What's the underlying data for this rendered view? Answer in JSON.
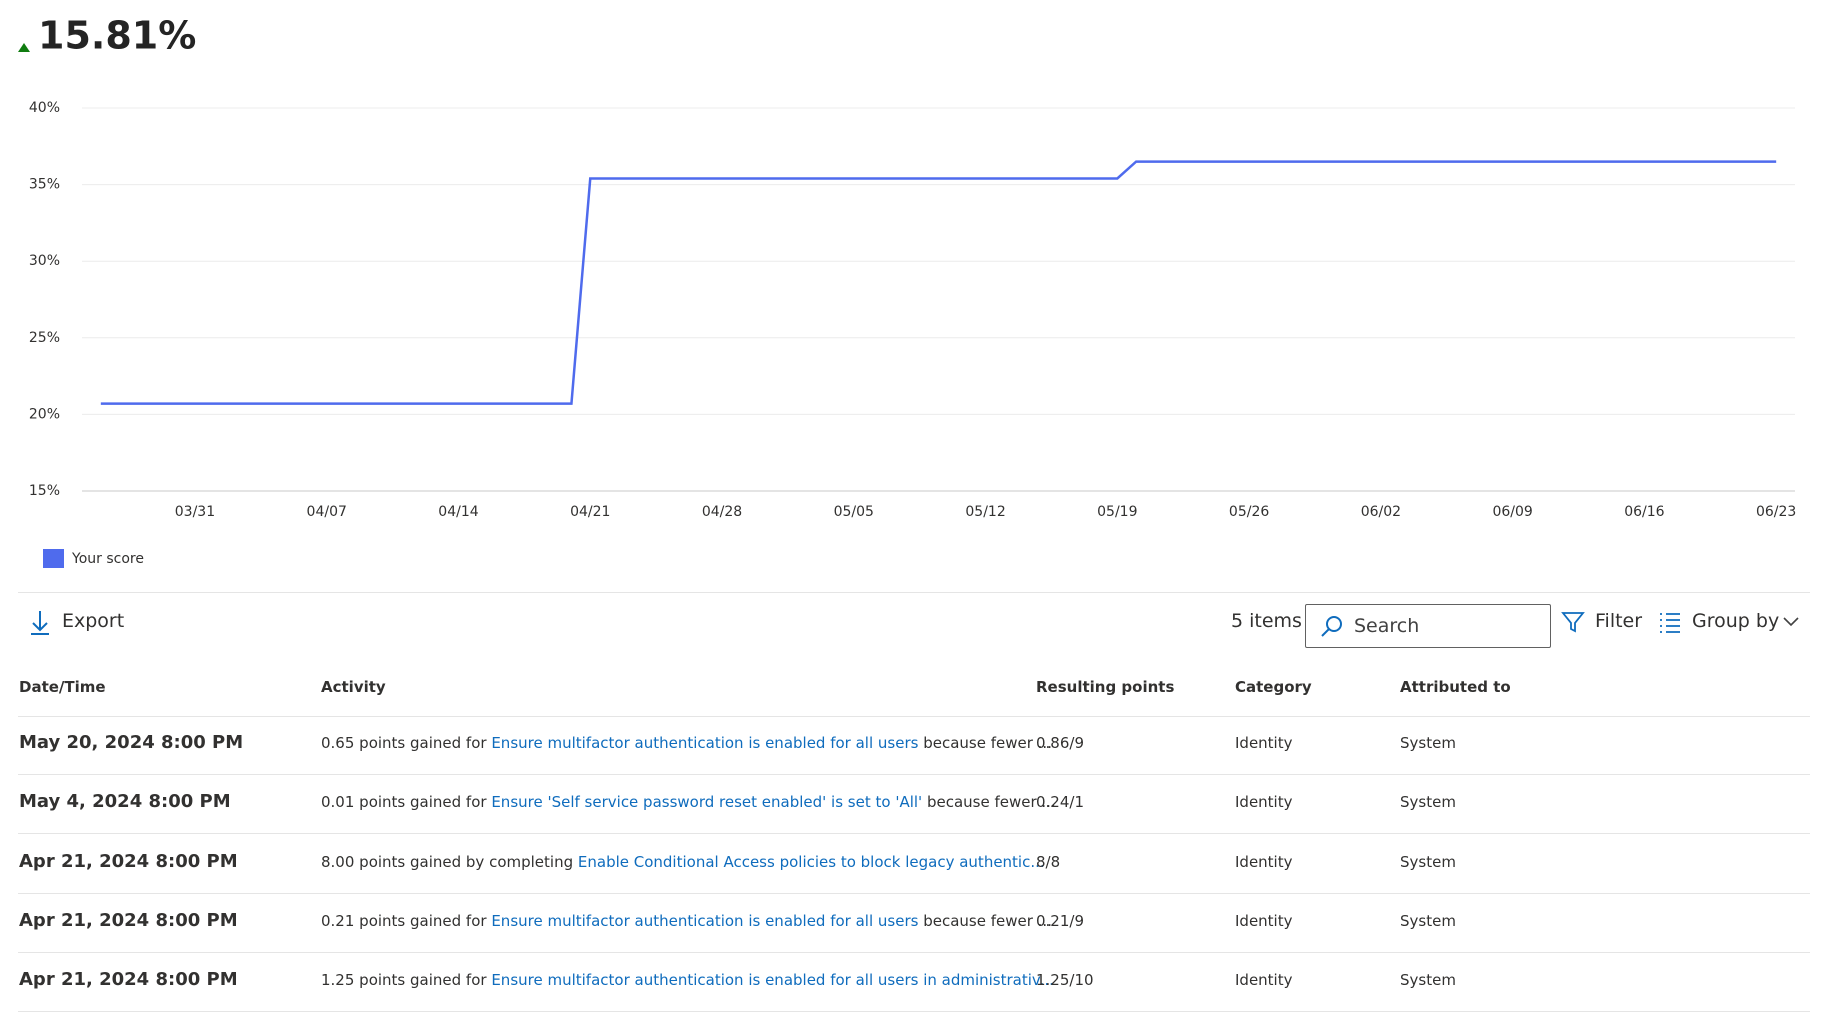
{
  "header": {
    "score": "15.81%"
  },
  "chart_data": {
    "type": "line",
    "series": [
      {
        "name": "Your score",
        "color": "#4f6bed",
        "x": [
          "03/26",
          "04/20",
          "04/21",
          "05/19",
          "05/20",
          "06/23"
        ],
        "values": [
          20.7,
          20.7,
          35.4,
          35.4,
          36.5,
          36.5
        ]
      }
    ],
    "xlim": [
      "03/25",
      "06/24"
    ],
    "xticks": [
      "03/31",
      "04/07",
      "04/14",
      "04/21",
      "04/28",
      "05/05",
      "05/12",
      "05/19",
      "05/26",
      "06/02",
      "06/09",
      "06/16",
      "06/23"
    ],
    "ylim": [
      15,
      40
    ],
    "yticks": [
      {
        "value": 15,
        "label": "15%"
      },
      {
        "value": 20,
        "label": "20%"
      },
      {
        "value": 25,
        "label": "25%"
      },
      {
        "value": 30,
        "label": "30%"
      },
      {
        "value": 35,
        "label": "35%"
      },
      {
        "value": 40,
        "label": "40%"
      }
    ],
    "grid": true,
    "legend": "bottom-left"
  },
  "toolbar": {
    "export": "Export",
    "count": "5 items",
    "search": "Search",
    "filter": "Filter",
    "group": "Group by"
  },
  "table": {
    "columns": [
      "Date/Time",
      "Activity",
      "Resulting points",
      "Category",
      "Attributed to"
    ],
    "rows": [
      {
        "date": "May 20, 2024 8:00 PM",
        "activity": {
          "prefix": "0.65 points gained for",
          "link": "Ensure multifactor authentication is enabled for all users",
          "suffix": "because fewer ..."
        },
        "points": "0.86/9",
        "category": "Identity",
        "attributed": "System"
      },
      {
        "date": "May 4, 2024 8:00 PM",
        "activity": {
          "prefix": "0.01 points gained for",
          "link": "Ensure 'Self service password reset enabled' is set to 'All'",
          "suffix": "because fewer ..."
        },
        "points": "0.24/1",
        "category": "Identity",
        "attributed": "System"
      },
      {
        "date": "Apr 21, 2024 8:00 PM",
        "activity": {
          "prefix": "8.00 points gained by completing",
          "link": "Enable Conditional Access policies to block legacy authentic..."
        },
        "points": "8/8",
        "category": "Identity",
        "attributed": "System"
      },
      {
        "date": "Apr 21, 2024 8:00 PM",
        "activity": {
          "prefix": "0.21 points gained for",
          "link": "Ensure multifactor authentication is enabled for all users",
          "suffix": "because fewer ..."
        },
        "points": "0.21/9",
        "category": "Identity",
        "attributed": "System"
      },
      {
        "date": "Apr 21, 2024 8:00 PM",
        "activity": {
          "prefix": "1.25 points gained for",
          "link": "Ensure multifactor authentication is enabled for all users in administrativ..."
        },
        "points": "1.25/10",
        "category": "Identity",
        "attributed": "System"
      }
    ]
  }
}
